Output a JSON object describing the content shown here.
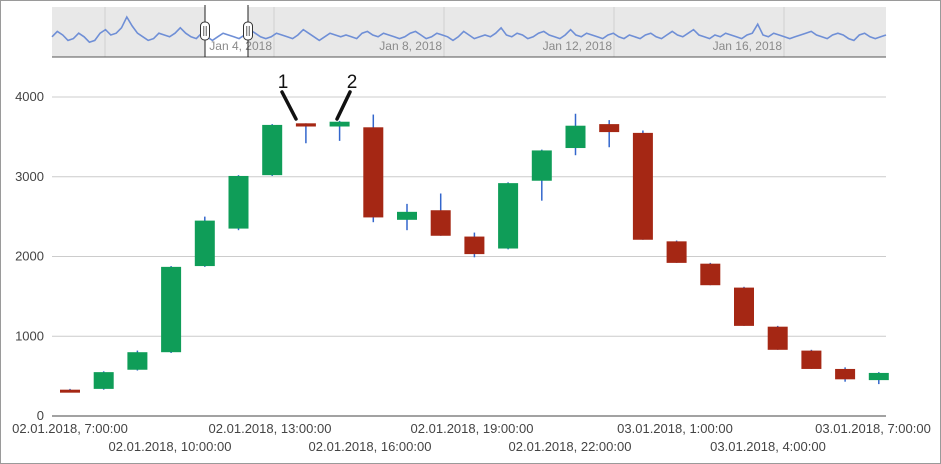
{
  "chart_data": {
    "type": "candlestick",
    "yticks": [
      0,
      1000,
      2000,
      3000,
      4000
    ],
    "ylim": [
      0,
      4000
    ],
    "grid": true,
    "colors": {
      "up": "#0f9d58",
      "down": "#a52714",
      "wick": "#3366cc",
      "range_fill": "#e8e8e8",
      "range_line": "#6f8fd6"
    },
    "x_labels_row1": [
      "02.01.2018, 7:00:00",
      "02.01.2018, 13:00:00",
      "02.01.2018, 19:00:00",
      "03.01.2018, 1:00:00",
      "03.01.2018, 7:00:00"
    ],
    "x_labels_row2": [
      "02.01.2018, 10:00:00",
      "02.01.2018, 16:00:00",
      "02.01.2018, 22:00:00",
      "03.01.2018, 4:00:00"
    ],
    "candles": [
      {
        "open": 330,
        "close": 310,
        "low": 300,
        "high": 340
      },
      {
        "open": 340,
        "close": 550,
        "low": 330,
        "high": 560
      },
      {
        "open": 580,
        "close": 800,
        "low": 570,
        "high": 820
      },
      {
        "open": 800,
        "close": 1870,
        "low": 790,
        "high": 1880
      },
      {
        "open": 1880,
        "close": 2450,
        "low": 1870,
        "high": 2500
      },
      {
        "open": 2350,
        "close": 3010,
        "low": 2330,
        "high": 3020
      },
      {
        "open": 3020,
        "close": 3650,
        "low": 3010,
        "high": 3660
      },
      {
        "open": 3670,
        "close": 3630,
        "low": 3420,
        "high": 3670
      },
      {
        "open": 3630,
        "close": 3690,
        "low": 3450,
        "high": 3700
      },
      {
        "open": 3620,
        "close": 2490,
        "low": 2430,
        "high": 3780
      },
      {
        "open": 2460,
        "close": 2560,
        "low": 2330,
        "high": 2660
      },
      {
        "open": 2580,
        "close": 2260,
        "low": 2260,
        "high": 2790
      },
      {
        "open": 2250,
        "close": 2030,
        "low": 1990,
        "high": 2300
      },
      {
        "open": 2100,
        "close": 2920,
        "low": 2090,
        "high": 2930
      },
      {
        "open": 2950,
        "close": 3330,
        "low": 2700,
        "high": 3340
      },
      {
        "open": 3360,
        "close": 3640,
        "low": 3270,
        "high": 3790
      },
      {
        "open": 3660,
        "close": 3560,
        "low": 3370,
        "high": 3710
      },
      {
        "open": 3550,
        "close": 2210,
        "low": 2210,
        "high": 3580
      },
      {
        "open": 2190,
        "close": 1920,
        "low": 1920,
        "high": 2200
      },
      {
        "open": 1910,
        "close": 1640,
        "low": 1640,
        "high": 1920
      },
      {
        "open": 1610,
        "close": 1130,
        "low": 1130,
        "high": 1620
      },
      {
        "open": 1120,
        "close": 830,
        "low": 830,
        "high": 1130
      },
      {
        "open": 820,
        "close": 590,
        "low": 590,
        "high": 830
      },
      {
        "open": 590,
        "close": 460,
        "low": 430,
        "high": 610
      },
      {
        "open": 450,
        "close": 540,
        "low": 400,
        "high": 550
      }
    ],
    "annotations": [
      {
        "label": "1",
        "candle": 7
      },
      {
        "label": "2",
        "candle": 8
      }
    ],
    "range_selector": {
      "tick_labels": [
        "Jan 4, 2018",
        "Jan 8, 2018",
        "Jan 12, 2018",
        "Jan 16, 2018"
      ],
      "series": [
        0.45,
        0.6,
        0.5,
        0.35,
        0.4,
        0.55,
        0.45,
        0.3,
        0.35,
        0.55,
        0.65,
        0.5,
        0.55,
        0.7,
        1.0,
        0.75,
        0.55,
        0.45,
        0.35,
        0.4,
        0.55,
        0.5,
        0.45,
        0.55,
        0.7,
        0.55,
        0.45,
        0.4,
        0.55,
        0.45,
        0.35,
        0.45,
        0.55,
        0.5,
        0.45,
        0.4,
        0.5,
        0.65,
        0.55,
        0.45,
        0.4,
        0.45,
        0.55,
        0.5,
        0.45,
        0.4,
        0.5,
        0.65,
        0.55,
        0.45,
        0.35,
        0.45,
        0.55,
        0.5,
        0.45,
        0.5,
        0.45,
        0.4,
        0.55,
        0.6,
        0.5,
        0.45,
        0.55,
        0.5,
        0.45,
        0.4,
        0.45,
        0.55,
        0.6,
        0.5,
        0.4,
        0.45,
        0.55,
        0.5,
        0.45,
        0.35,
        0.45,
        0.6,
        0.5,
        0.4,
        0.45,
        0.5,
        0.45,
        0.55,
        0.7,
        0.5,
        0.45,
        0.55,
        0.5,
        0.4,
        0.45,
        0.55,
        0.6,
        0.5,
        0.45,
        0.4,
        0.5,
        0.65,
        0.5,
        0.45,
        0.55,
        0.5,
        0.45,
        0.4,
        0.5,
        0.55,
        0.45,
        0.4,
        0.5,
        0.45,
        0.4,
        0.5,
        0.55,
        0.45,
        0.4,
        0.5,
        0.6,
        0.5,
        0.45,
        0.55,
        0.65,
        0.5,
        0.45,
        0.4,
        0.5,
        0.45,
        0.55,
        0.5,
        0.45,
        0.4,
        0.5,
        0.55,
        0.8,
        0.5,
        0.45,
        0.55,
        0.5,
        0.45,
        0.4,
        0.45,
        0.5,
        0.55,
        0.6,
        0.5,
        0.45,
        0.4,
        0.5,
        0.55,
        0.5,
        0.4,
        0.35,
        0.5,
        0.55,
        0.45,
        0.4,
        0.45,
        0.5
      ]
    }
  }
}
